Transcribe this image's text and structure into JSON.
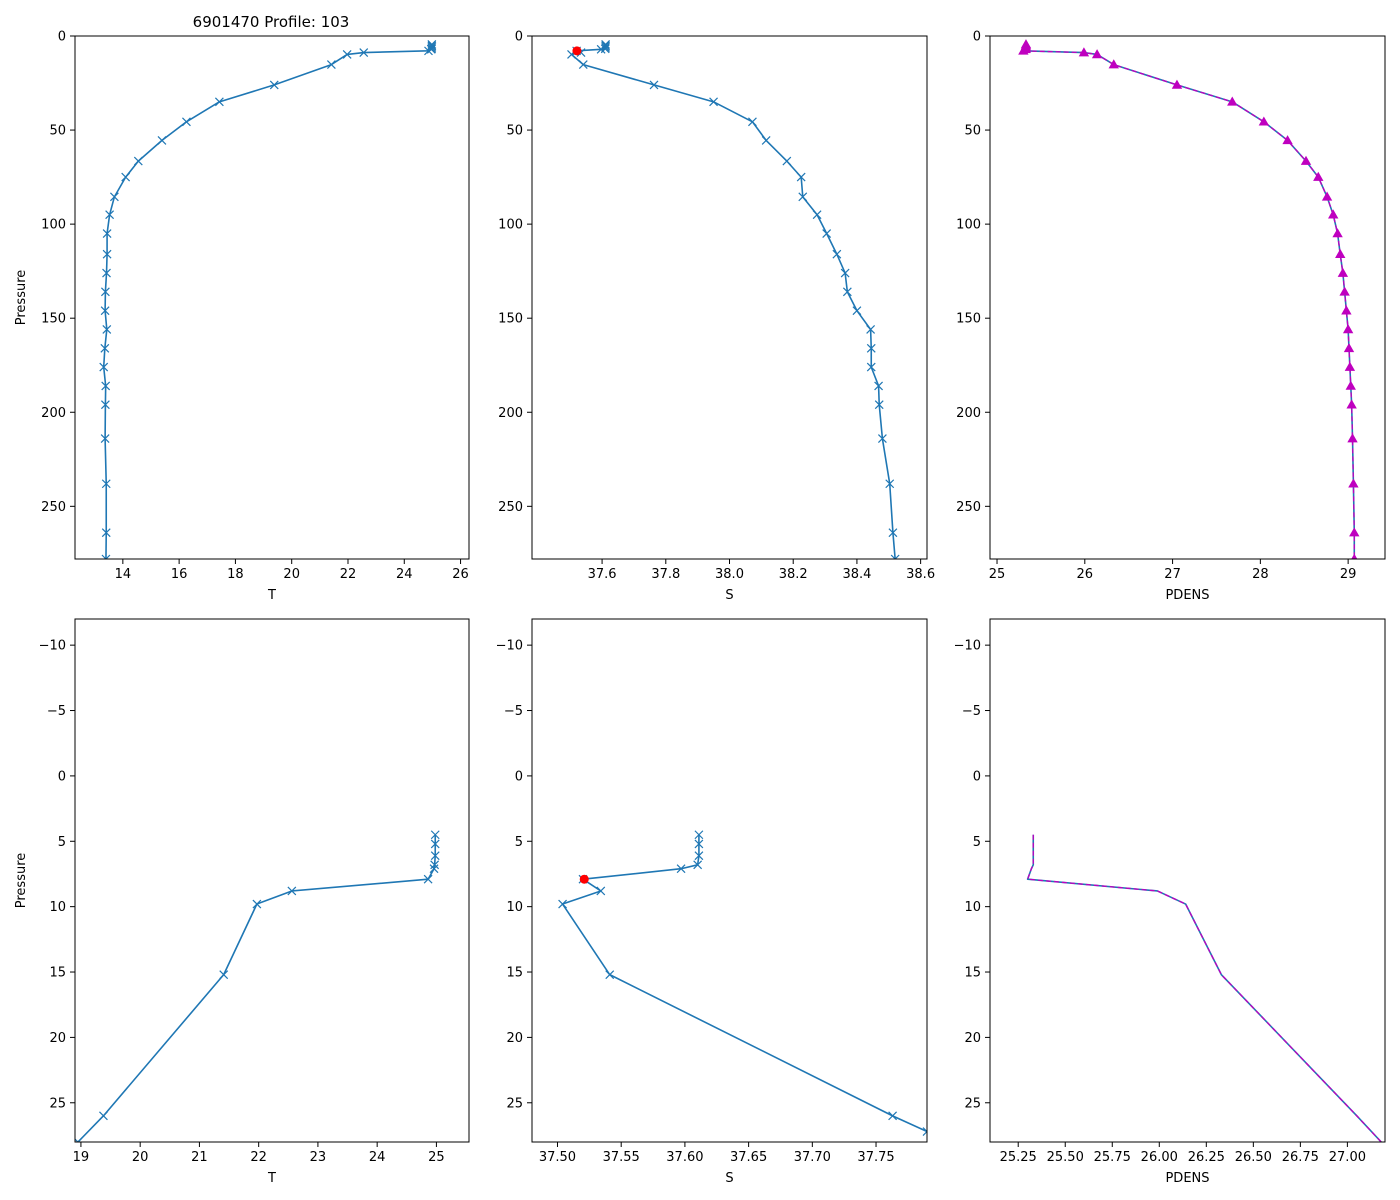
{
  "figure_title": "6901470 Profile: 103",
  "colors": {
    "line": "#1f77b4",
    "flag": "#ff0000",
    "pdens_marker": "#bf00bf",
    "pdens_dash": "#bf00bf"
  },
  "chart_data": [
    {
      "id": "top-t",
      "type": "line",
      "xlabel": "T",
      "ylabel": "Pressure",
      "xlim": [
        12.3,
        26.3
      ],
      "ylim": [
        278,
        0
      ],
      "xticks": [
        14,
        16,
        18,
        20,
        22,
        24,
        26
      ],
      "xtick_labels": [
        "14",
        "16",
        "18",
        "20",
        "22",
        "24",
        "26"
      ],
      "yticks": [
        0,
        50,
        100,
        150,
        200,
        250
      ],
      "ytick_labels": [
        "0",
        "50",
        "100",
        "150",
        "200",
        "250"
      ],
      "series": [
        {
          "name": "T",
          "marker": "x",
          "x": [
            24.98,
            24.98,
            24.98,
            24.97,
            24.96,
            24.86,
            22.56,
            21.97,
            21.41,
            19.38,
            17.43,
            16.26,
            15.39,
            14.55,
            14.1,
            13.7,
            13.53,
            13.44,
            13.44,
            13.42,
            13.38,
            13.37,
            13.43,
            13.36,
            13.32,
            13.39,
            13.38,
            13.37,
            13.41,
            13.41,
            13.4
          ],
          "y": [
            4.5,
            5.2,
            6.1,
            6.8,
            7.1,
            7.9,
            8.8,
            9.8,
            15.2,
            26,
            35,
            45.6,
            55.5,
            66.5,
            75,
            85.5,
            95,
            105,
            116,
            126,
            136,
            146,
            156,
            166,
            176,
            186,
            196,
            214,
            238,
            264,
            278
          ]
        }
      ],
      "markers": []
    },
    {
      "id": "top-s",
      "type": "line",
      "xlabel": "S",
      "ylabel": "",
      "xlim": [
        37.38,
        38.62
      ],
      "ylim": [
        278,
        0
      ],
      "xticks": [
        37.6,
        37.8,
        38.0,
        38.2,
        38.4,
        38.6
      ],
      "xtick_labels": [
        "37.6",
        "37.8",
        "38.0",
        "38.2",
        "38.4",
        "38.6"
      ],
      "yticks": [
        0,
        50,
        100,
        150,
        200,
        250
      ],
      "ytick_labels": [
        "0",
        "50",
        "100",
        "150",
        "200",
        "250"
      ],
      "series": [
        {
          "name": "S",
          "marker": "x",
          "x": [
            37.611,
            37.611,
            37.611,
            37.61,
            37.597,
            37.52,
            37.534,
            37.504,
            37.541,
            37.763,
            37.95,
            38.072,
            38.115,
            38.18,
            38.225,
            38.23,
            38.275,
            38.305,
            38.337,
            38.363,
            38.37,
            38.4,
            38.443,
            38.445,
            38.445,
            38.468,
            38.47,
            38.48,
            38.503,
            38.513,
            38.52
          ],
          "y": [
            4.5,
            5.2,
            6.1,
            6.8,
            7.1,
            7.9,
            8.8,
            9.8,
            15.2,
            26,
            35,
            45.6,
            55.5,
            66.5,
            75,
            85.5,
            95,
            105,
            116,
            126,
            136,
            146,
            156,
            166,
            176,
            186,
            196,
            214,
            238,
            264,
            278
          ]
        }
      ],
      "markers": [
        {
          "x": 37.521,
          "y": 7.9,
          "shape": "circle"
        }
      ]
    },
    {
      "id": "top-pdens",
      "type": "line",
      "xlabel": "PDENS",
      "ylabel": "",
      "xlim": [
        24.92,
        29.42
      ],
      "ylim": [
        278,
        0
      ],
      "xticks": [
        25,
        26,
        27,
        28,
        29
      ],
      "xtick_labels": [
        "25",
        "26",
        "27",
        "28",
        "29"
      ],
      "yticks": [
        0,
        50,
        100,
        150,
        200,
        250
      ],
      "ytick_labels": [
        "0",
        "50",
        "100",
        "150",
        "200",
        "250"
      ],
      "series": [
        {
          "name": "PDENS",
          "marker": "triangle",
          "dashed_overlay": true,
          "x": [
            25.33,
            25.33,
            25.33,
            25.33,
            25.32,
            25.3,
            25.99,
            26.14,
            26.33,
            27.05,
            27.68,
            28.04,
            28.31,
            28.52,
            28.66,
            28.76,
            28.83,
            28.88,
            28.91,
            28.94,
            28.96,
            28.98,
            29.0,
            29.01,
            29.02,
            29.03,
            29.04,
            29.05,
            29.06,
            29.07,
            29.07
          ],
          "y": [
            4.5,
            5.2,
            6.1,
            6.8,
            7.1,
            7.9,
            8.8,
            9.8,
            15.2,
            26,
            35,
            45.6,
            55.5,
            66.5,
            75,
            85.5,
            95,
            105,
            116,
            126,
            136,
            146,
            156,
            166,
            176,
            186,
            196,
            214,
            238,
            264,
            278
          ]
        }
      ],
      "markers": []
    },
    {
      "id": "bottom-t",
      "type": "line",
      "xlabel": "T",
      "ylabel": "Pressure",
      "xlim": [
        18.9,
        25.55
      ],
      "ylim": [
        28,
        -12
      ],
      "xticks": [
        19,
        20,
        21,
        22,
        23,
        24,
        25
      ],
      "xtick_labels": [
        "19",
        "20",
        "21",
        "22",
        "23",
        "24",
        "25"
      ],
      "yticks": [
        -10,
        -5,
        0,
        5,
        10,
        15,
        20,
        25
      ],
      "ytick_labels": [
        "−10",
        "−5",
        "0",
        "5",
        "10",
        "15",
        "20",
        "25"
      ],
      "series": [
        {
          "name": "T",
          "marker": "x",
          "x": [
            24.98,
            24.98,
            24.98,
            24.97,
            24.96,
            24.86,
            22.56,
            21.97,
            21.41,
            19.38,
            18.95
          ],
          "y": [
            4.5,
            5.2,
            6.1,
            6.8,
            7.1,
            7.9,
            8.8,
            9.8,
            15.2,
            26,
            28
          ]
        }
      ],
      "markers": []
    },
    {
      "id": "bottom-s",
      "type": "line",
      "xlabel": "S",
      "ylabel": "",
      "xlim": [
        37.48,
        37.79
      ],
      "ylim": [
        28,
        -12
      ],
      "xticks": [
        37.5,
        37.55,
        37.6,
        37.65,
        37.7,
        37.75
      ],
      "xtick_labels": [
        "37.50",
        "37.55",
        "37.60",
        "37.65",
        "37.70",
        "37.75"
      ],
      "yticks": [
        -10,
        -5,
        0,
        5,
        10,
        15,
        20,
        25
      ],
      "ytick_labels": [
        "−10",
        "−5",
        "0",
        "5",
        "10",
        "15",
        "20",
        "25"
      ],
      "series": [
        {
          "name": "S",
          "marker": "x",
          "x": [
            37.611,
            37.611,
            37.611,
            37.61,
            37.597,
            37.52,
            37.534,
            37.504,
            37.541,
            37.763,
            37.79
          ],
          "y": [
            4.5,
            5.2,
            6.1,
            6.8,
            7.1,
            7.9,
            8.8,
            9.8,
            15.2,
            26,
            27.2
          ]
        }
      ],
      "markers": [
        {
          "x": 37.521,
          "y": 7.9,
          "shape": "circle"
        }
      ]
    },
    {
      "id": "bottom-pdens",
      "type": "line",
      "xlabel": "PDENS",
      "ylabel": "",
      "xlim": [
        25.1,
        27.2
      ],
      "ylim": [
        28,
        -12
      ],
      "xticks": [
        25.25,
        25.5,
        25.75,
        26.0,
        26.25,
        26.5,
        26.75,
        27.0
      ],
      "xtick_labels": [
        "25.25",
        "25.50",
        "25.75",
        "26.00",
        "26.25",
        "26.50",
        "26.75",
        "27.00"
      ],
      "yticks": [
        -10,
        -5,
        0,
        5,
        10,
        15,
        20,
        25
      ],
      "ytick_labels": [
        "−10",
        "−5",
        "0",
        "5",
        "10",
        "15",
        "20",
        "25"
      ],
      "series": [
        {
          "name": "PDENS",
          "marker": "none",
          "dashed_overlay": true,
          "x": [
            25.33,
            25.33,
            25.33,
            25.33,
            25.32,
            25.3,
            25.99,
            26.14,
            26.33,
            27.05,
            27.18
          ],
          "y": [
            4.5,
            5.2,
            6.1,
            6.8,
            7.1,
            7.9,
            8.8,
            9.8,
            15.2,
            26,
            28
          ]
        }
      ],
      "markers": []
    }
  ]
}
